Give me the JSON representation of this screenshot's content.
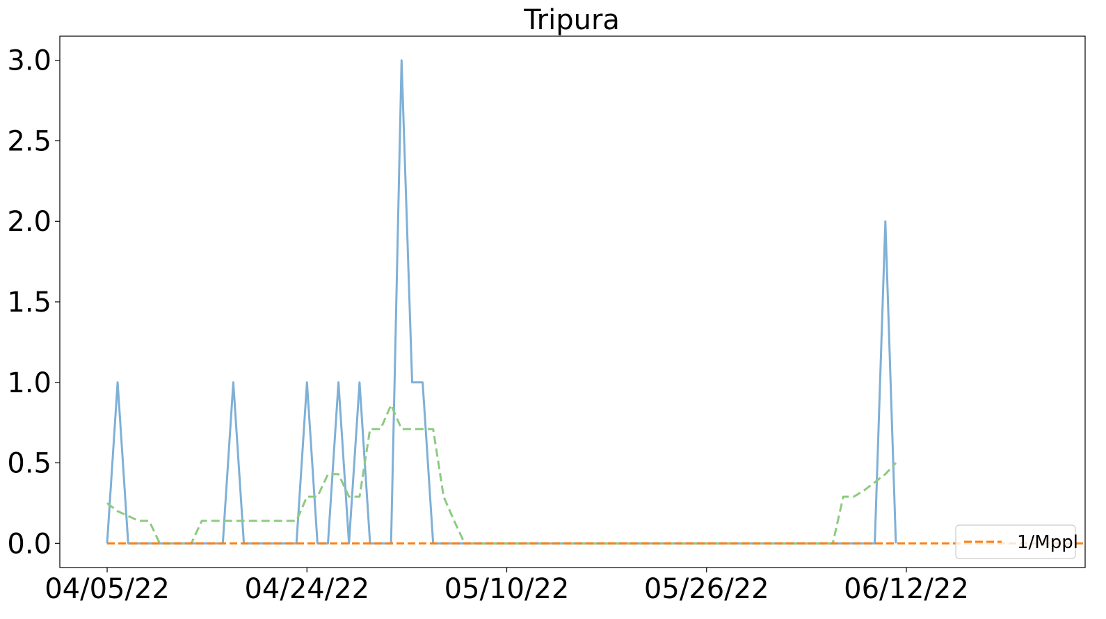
{
  "chart_data": {
    "type": "line",
    "title": "Tripura",
    "xlabel": "",
    "ylabel": "",
    "x_tick_labels": [
      "04/05/22",
      "04/24/22",
      "05/10/22",
      "05/26/22",
      "06/12/22"
    ],
    "x_tick_days": [
      0,
      19,
      38,
      57,
      76
    ],
    "xlim_days": [
      -4.5,
      93
    ],
    "ylim": [
      -0.15,
      3.15
    ],
    "y_ticks": [
      0.0,
      0.5,
      1.0,
      1.5,
      2.0,
      2.5,
      3.0
    ],
    "y_tick_labels": [
      "0.0",
      "0.5",
      "1.0",
      "1.5",
      "2.0",
      "2.5",
      "3.0"
    ],
    "grid": false,
    "legend_position": "lower right",
    "series": [
      {
        "color": "#7fb0d6",
        "style": "solid",
        "x": [
          0,
          1,
          2,
          3,
          4,
          5,
          6,
          7,
          8,
          9,
          10,
          11,
          12,
          13,
          14,
          15,
          16,
          17,
          18,
          19,
          20,
          21,
          22,
          23,
          24,
          25,
          26,
          27,
          28,
          29,
          30,
          31,
          32,
          33,
          34,
          35,
          36,
          37,
          38,
          39,
          40,
          41,
          42,
          43,
          44,
          45,
          46,
          47,
          48,
          49,
          50,
          51,
          52,
          53,
          54,
          55,
          56,
          57,
          58,
          59,
          60,
          61,
          62,
          63,
          64,
          65,
          66,
          67,
          68,
          69,
          70,
          71,
          72,
          73,
          74,
          75
        ],
        "values": [
          0,
          1,
          0,
          0,
          0,
          0,
          0,
          0,
          0,
          0,
          0,
          0,
          1,
          0,
          0,
          0,
          0,
          0,
          0,
          1,
          0,
          0,
          1,
          0,
          1,
          0,
          0,
          0,
          3,
          1,
          1,
          0,
          0,
          0,
          0,
          0,
          0,
          0,
          0,
          0,
          0,
          0,
          0,
          0,
          0,
          0,
          0,
          0,
          0,
          0,
          0,
          0,
          0,
          0,
          0,
          0,
          0,
          0,
          0,
          0,
          0,
          0,
          0,
          0,
          0,
          0,
          0,
          0,
          0,
          0,
          0,
          0,
          0,
          0,
          2,
          0
        ]
      },
      {
        "color": "#8ccb81",
        "style": "dashed",
        "x": [
          0,
          1,
          2,
          3,
          4,
          5,
          6,
          7,
          8,
          9,
          10,
          11,
          12,
          13,
          14,
          15,
          16,
          17,
          18,
          19,
          20,
          21,
          22,
          23,
          24,
          25,
          26,
          27,
          28,
          29,
          30,
          31,
          32,
          33,
          34,
          35,
          36,
          37,
          38,
          39,
          40,
          41,
          42,
          43,
          44,
          45,
          46,
          47,
          48,
          49,
          50,
          51,
          52,
          53,
          54,
          55,
          56,
          57,
          58,
          59,
          60,
          61,
          62,
          63,
          64,
          65,
          66,
          67,
          68,
          69,
          70,
          71,
          72,
          73,
          74,
          75
        ],
        "values": [
          0.25,
          0.2,
          0.17,
          0.14,
          0.14,
          0,
          0,
          0,
          0,
          0.14,
          0.14,
          0.14,
          0.14,
          0.14,
          0.14,
          0.14,
          0.14,
          0.14,
          0.14,
          0.29,
          0.29,
          0.43,
          0.43,
          0.29,
          0.29,
          0.71,
          0.71,
          0.86,
          0.71,
          0.71,
          0.71,
          0.71,
          0.29,
          0.14,
          0,
          0,
          0,
          0,
          0,
          0,
          0,
          0,
          0,
          0,
          0,
          0,
          0,
          0,
          0,
          0,
          0,
          0,
          0,
          0,
          0,
          0,
          0,
          0,
          0,
          0,
          0,
          0,
          0,
          0,
          0,
          0,
          0,
          0,
          0,
          0,
          0.29,
          0.29,
          0.33,
          0.38,
          0.43,
          0.5
        ]
      },
      {
        "name": "1/Mppl",
        "color": "#ff7f0e",
        "style": "dashed",
        "x": [
          0,
          93
        ],
        "values": [
          0,
          0
        ]
      }
    ],
    "legend": [
      "1/Mppl"
    ]
  }
}
